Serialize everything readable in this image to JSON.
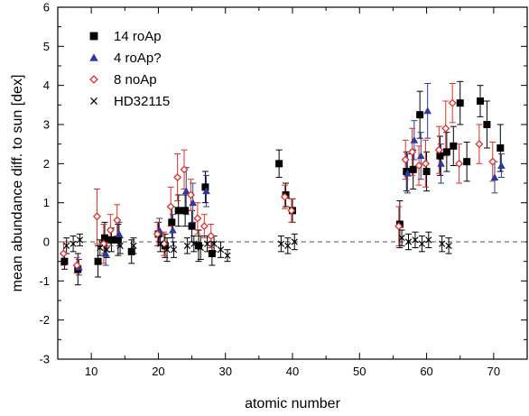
{
  "chart_data": {
    "type": "scatter",
    "title": "",
    "xlabel": "atomic number",
    "ylabel": "mean abundance diff. to sun [dex]",
    "xlim": [
      5,
      75
    ],
    "ylim": [
      -3,
      6
    ],
    "x_ticks": [
      10,
      20,
      30,
      40,
      50,
      60,
      70
    ],
    "y_ticks": [
      -3,
      -2,
      -1,
      0,
      1,
      2,
      3,
      4,
      5,
      6
    ],
    "reference_line": {
      "y": 0,
      "style": "dashed"
    },
    "grid": false,
    "legend_position": "top-left",
    "series": [
      {
        "name": "14 roAp",
        "marker": "square",
        "color": "#000000",
        "points": [
          {
            "x": 6,
            "y": -0.5,
            "err": 0.2
          },
          {
            "x": 8,
            "y": -0.7,
            "err": 0.4
          },
          {
            "x": 11,
            "y": -0.5,
            "err": 0.4
          },
          {
            "x": 12,
            "y": 0.1,
            "err": 0.4
          },
          {
            "x": 13,
            "y": 0.05,
            "err": 0.3
          },
          {
            "x": 14,
            "y": 0.05,
            "err": 0.4
          },
          {
            "x": 16,
            "y": -0.25,
            "err": 0.3
          },
          {
            "x": 20,
            "y": 0.2,
            "err": 0.3
          },
          {
            "x": 21,
            "y": -0.1,
            "err": 0.3
          },
          {
            "x": 22,
            "y": 0.5,
            "err": 0.4
          },
          {
            "x": 23,
            "y": 0.8,
            "err": 0.4
          },
          {
            "x": 24,
            "y": 0.8,
            "err": 0.4
          },
          {
            "x": 25,
            "y": 0.4,
            "err": 0.4
          },
          {
            "x": 26,
            "y": -0.1,
            "err": 0.4
          },
          {
            "x": 27,
            "y": 1.4,
            "err": 0.4
          },
          {
            "x": 28,
            "y": -0.3,
            "err": 0.3
          },
          {
            "x": 38,
            "y": 2.0,
            "err": 0.35
          },
          {
            "x": 39,
            "y": 1.2,
            "err": 0.3
          },
          {
            "x": 40,
            "y": 0.8,
            "err": 0.3
          },
          {
            "x": 56,
            "y": 0.45,
            "err": 0.6
          },
          {
            "x": 57,
            "y": 1.8,
            "err": 0.5
          },
          {
            "x": 58,
            "y": 1.85,
            "err": 0.5
          },
          {
            "x": 59,
            "y": 3.25,
            "err": 0.6
          },
          {
            "x": 60,
            "y": 1.8,
            "err": 0.5
          },
          {
            "x": 62,
            "y": 2.2,
            "err": 0.5
          },
          {
            "x": 63,
            "y": 2.3,
            "err": 0.5
          },
          {
            "x": 64,
            "y": 2.45,
            "err": 0.5
          },
          {
            "x": 65,
            "y": 3.55,
            "err": 0.55
          },
          {
            "x": 66,
            "y": 2.05,
            "err": 0.5
          },
          {
            "x": 68,
            "y": 3.6,
            "err": 0.4
          },
          {
            "x": 69,
            "y": 3.0,
            "err": 0.6
          },
          {
            "x": 71,
            "y": 2.4,
            "err": 0.6
          }
        ]
      },
      {
        "name": "4 roAp?",
        "marker": "triangle",
        "color": "#2b3a9c",
        "points": [
          {
            "x": 8,
            "y": -0.65,
            "err": 0.2
          },
          {
            "x": 12,
            "y": -0.3,
            "err": 0.3
          },
          {
            "x": 14,
            "y": 0.2,
            "err": 0.3
          },
          {
            "x": 20,
            "y": 0.3,
            "err": 0.3
          },
          {
            "x": 22,
            "y": 0.3,
            "err": 0.4
          },
          {
            "x": 24,
            "y": 1.3,
            "err": 0.6
          },
          {
            "x": 25,
            "y": 1.0,
            "err": 0.5
          },
          {
            "x": 27,
            "y": 1.3,
            "err": 0.4
          },
          {
            "x": 57,
            "y": 1.75,
            "err": 0.5
          },
          {
            "x": 58,
            "y": 2.6,
            "err": 0.5
          },
          {
            "x": 59,
            "y": 2.2,
            "err": 0.6
          },
          {
            "x": 60,
            "y": 3.35,
            "err": 0.7
          },
          {
            "x": 62,
            "y": 2.0,
            "err": 0.5
          },
          {
            "x": 70,
            "y": 1.65,
            "err": 0.4
          },
          {
            "x": 71,
            "y": 1.95,
            "err": 0.3
          }
        ]
      },
      {
        "name": "8 noAp",
        "marker": "diamond",
        "color": "#e0302a",
        "points": [
          {
            "x": 6,
            "y": -0.3,
            "err": 0.3
          },
          {
            "x": 8,
            "y": -0.6,
            "err": 0.2
          },
          {
            "x": 11,
            "y": 0.65,
            "err": 0.7
          },
          {
            "x": 12,
            "y": -0.05,
            "err": 0.5
          },
          {
            "x": 13,
            "y": 0.3,
            "err": 0.4
          },
          {
            "x": 14,
            "y": 0.55,
            "err": 0.4
          },
          {
            "x": 20,
            "y": 0.2,
            "err": 0.3
          },
          {
            "x": 21,
            "y": -0.05,
            "err": 0.3
          },
          {
            "x": 22,
            "y": 0.9,
            "err": 0.5
          },
          {
            "x": 23,
            "y": 1.65,
            "err": 0.6
          },
          {
            "x": 24,
            "y": 1.85,
            "err": 0.5
          },
          {
            "x": 25,
            "y": 1.2,
            "err": 0.4
          },
          {
            "x": 26,
            "y": 0.6,
            "err": 0.4
          },
          {
            "x": 27,
            "y": 0.4,
            "err": 0.3
          },
          {
            "x": 28,
            "y": 0.15,
            "err": 0.3
          },
          {
            "x": 39,
            "y": 1.15,
            "err": 0.3
          },
          {
            "x": 40,
            "y": 0.8,
            "err": 0.3
          },
          {
            "x": 56,
            "y": 0.4,
            "err": 0.5
          },
          {
            "x": 57,
            "y": 2.1,
            "err": 0.5
          },
          {
            "x": 58,
            "y": 2.3,
            "err": 0.6
          },
          {
            "x": 59,
            "y": 1.95,
            "err": 0.5
          },
          {
            "x": 60,
            "y": 2.0,
            "err": 0.6
          },
          {
            "x": 62,
            "y": 2.35,
            "err": 0.6
          },
          {
            "x": 63,
            "y": 2.9,
            "err": 0.7
          },
          {
            "x": 64,
            "y": 3.55,
            "err": 0.5
          },
          {
            "x": 65,
            "y": 2.0,
            "err": 0.5
          },
          {
            "x": 68,
            "y": 2.5,
            "err": 0.5
          },
          {
            "x": 70,
            "y": 2.05,
            "err": 0.5
          }
        ]
      },
      {
        "name": "HD32115",
        "marker": "cross",
        "color": "#000000",
        "points": [
          {
            "x": 6,
            "y": -0.1,
            "err": 0.2
          },
          {
            "x": 7,
            "y": -0.05,
            "err": 0.2
          },
          {
            "x": 8,
            "y": 0.05,
            "err": 0.15
          },
          {
            "x": 11,
            "y": -0.15,
            "err": 0.2
          },
          {
            "x": 12,
            "y": -0.2,
            "err": 0.2
          },
          {
            "x": 14,
            "y": -0.1,
            "err": 0.2
          },
          {
            "x": 16,
            "y": -0.1,
            "err": 0.2
          },
          {
            "x": 20,
            "y": -0.05,
            "err": 0.2
          },
          {
            "x": 21,
            "y": -0.2,
            "err": 0.3
          },
          {
            "x": 22,
            "y": -0.2,
            "err": 0.2
          },
          {
            "x": 24,
            "y": -0.1,
            "err": 0.2
          },
          {
            "x": 25,
            "y": -0.05,
            "err": 0.2
          },
          {
            "x": 26,
            "y": -0.15,
            "err": 0.3
          },
          {
            "x": 27,
            "y": -0.05,
            "err": 0.2
          },
          {
            "x": 28,
            "y": -0.05,
            "err": 0.2
          },
          {
            "x": 29,
            "y": -0.2,
            "err": 0.2
          },
          {
            "x": 30,
            "y": -0.35,
            "err": 0.15
          },
          {
            "x": 38,
            "y": -0.05,
            "err": 0.2
          },
          {
            "x": 39,
            "y": -0.1,
            "err": 0.2
          },
          {
            "x": 40,
            "y": 0.0,
            "err": 0.2
          },
          {
            "x": 56,
            "y": 0.1,
            "err": 0.2
          },
          {
            "x": 57,
            "y": 0.0,
            "err": 0.2
          },
          {
            "x": 58,
            "y": 0.05,
            "err": 0.2
          },
          {
            "x": 59,
            "y": -0.05,
            "err": 0.2
          },
          {
            "x": 60,
            "y": 0.05,
            "err": 0.2
          },
          {
            "x": 62,
            "y": -0.05,
            "err": 0.2
          },
          {
            "x": 63,
            "y": -0.1,
            "err": 0.2
          }
        ]
      }
    ]
  }
}
